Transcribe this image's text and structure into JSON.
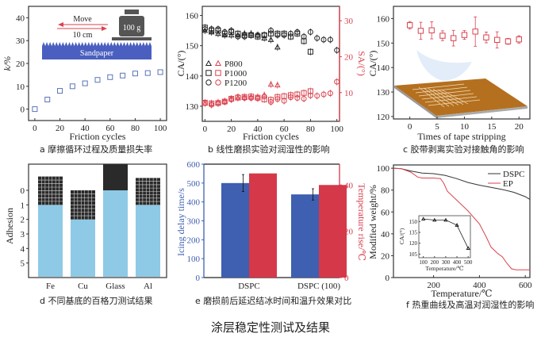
{
  "figure_title": "涂层稳定性测试及结果",
  "chart_data": [
    {
      "id": "a",
      "type": "scatter",
      "caption": "a 摩擦循环过程及质量损失率",
      "xlabel": "Friction cycles",
      "ylabel": "k/%",
      "xlim": [
        -5,
        105
      ],
      "ylim": [
        -5,
        45
      ],
      "xticks": [
        0,
        20,
        40,
        60,
        80,
        100
      ],
      "yticks": [
        0,
        10,
        20,
        30,
        40
      ],
      "marker": "square-open",
      "color": "#5b74b8",
      "x": [
        0,
        10,
        20,
        30,
        40,
        50,
        60,
        70,
        80,
        90,
        100
      ],
      "y": [
        0,
        4.2,
        8,
        10,
        11.3,
        12.8,
        14,
        14.7,
        15.6,
        15.8,
        16.2
      ],
      "inset": {
        "move_label": "Move",
        "distance_label": "10 cm",
        "weight_label": "100 g",
        "sandpaper_label": "Sandpaper"
      }
    },
    {
      "id": "b",
      "type": "scatter",
      "caption": "b 线性磨损实验对润湿性的影响",
      "xlabel": "Friction cycles",
      "ylabel_left": "CA/(°)",
      "ylabel_right": "SA/(°)",
      "xlim": [
        -2,
        102
      ],
      "ylim_left": [
        125,
        163
      ],
      "ylim_right": [
        2,
        34
      ],
      "xticks": [
        0,
        20,
        40,
        60,
        80,
        100
      ],
      "yticks_left": [
        130,
        140,
        150,
        160
      ],
      "yticks_right": [
        10,
        20,
        30
      ],
      "ca_color": "#222222",
      "sa_color": "#d9434f",
      "legend": [
        {
          "marker": "triangle",
          "label": "P800"
        },
        {
          "marker": "square",
          "label": "P1000"
        },
        {
          "marker": "circle",
          "label": "P1200"
        }
      ],
      "series": [
        {
          "name": "P800 CA",
          "axis": "left",
          "marker": "triangle",
          "x": [
            0,
            5,
            10,
            15,
            20,
            25,
            30,
            35,
            40,
            45,
            50,
            55
          ],
          "y": [
            155,
            154.5,
            154,
            153.5,
            153.5,
            153.5,
            154,
            154,
            153.5,
            152.5,
            152,
            149.5
          ]
        },
        {
          "name": "P1000 CA",
          "axis": "left",
          "marker": "square",
          "x": [
            0,
            5,
            10,
            15,
            20,
            25,
            30,
            35,
            40,
            45,
            50,
            55,
            60,
            65,
            70,
            75,
            80
          ],
          "y": [
            156,
            155,
            155,
            154,
            154.5,
            154,
            153.5,
            153.5,
            153,
            153.5,
            154,
            154,
            154,
            153,
            154,
            151.5,
            148
          ]
        },
        {
          "name": "P1200 CA",
          "axis": "left",
          "marker": "circle",
          "x": [
            0,
            5,
            10,
            15,
            20,
            25,
            30,
            35,
            40,
            45,
            50,
            55,
            60,
            65,
            70,
            75,
            80,
            85,
            90,
            95,
            100
          ],
          "y": [
            155.5,
            155.5,
            155.5,
            154.5,
            155,
            153,
            153,
            153.5,
            153.5,
            153.5,
            155,
            153.5,
            153.5,
            154,
            154.5,
            153,
            154.5,
            152.5,
            152,
            152,
            148.5
          ]
        },
        {
          "name": "P800 SA",
          "axis": "right",
          "marker": "triangle",
          "x": [
            0,
            5,
            10,
            15,
            20,
            25,
            30,
            35,
            40,
            45,
            50,
            55
          ],
          "y": [
            7,
            7,
            7.3,
            7.6,
            8.2,
            8.5,
            8.6,
            8.7,
            8.8,
            9.3,
            12.3,
            12.1
          ]
        },
        {
          "name": "P1000 SA",
          "axis": "right",
          "marker": "square",
          "x": [
            0,
            5,
            10,
            15,
            20,
            25,
            30,
            35,
            40,
            45,
            50,
            55,
            60,
            65,
            70,
            75,
            80
          ],
          "y": [
            7.2,
            7,
            7.1,
            7.5,
            8.3,
            8.6,
            8.8,
            8.9,
            8.6,
            8.1,
            8,
            8.8,
            9,
            9.3,
            9.5,
            9.9,
            10.4
          ]
        },
        {
          "name": "P1200 SA",
          "axis": "right",
          "marker": "circle",
          "x": [
            0,
            5,
            10,
            15,
            20,
            25,
            30,
            35,
            40,
            45,
            50,
            55,
            60,
            65,
            70,
            75,
            80,
            85,
            90,
            95,
            100
          ],
          "y": [
            7.1,
            6.6,
            7,
            7.4,
            8.1,
            8.8,
            8.5,
            8.5,
            8.4,
            8.9,
            7.4,
            8.2,
            7.7,
            8.7,
            8.5,
            8.3,
            9.2,
            9.1,
            9.5,
            9.8,
            13
          ]
        }
      ]
    },
    {
      "id": "c",
      "type": "scatter",
      "caption": "c 胶带剥离实验对接触角的影响",
      "xlabel": "Times of tape stripping",
      "ylabel": "CA/(°)",
      "xlim": [
        -3,
        22
      ],
      "ylim": [
        119,
        165
      ],
      "xticks": [
        0,
        5,
        10,
        15,
        20
      ],
      "yticks": [
        120,
        130,
        140,
        150,
        160
      ],
      "color": "#d9434f",
      "marker": "square-open",
      "x": [
        0,
        2,
        4,
        6,
        8,
        10,
        12,
        14,
        16,
        18,
        20
      ],
      "y": [
        157.3,
        155,
        155.2,
        153,
        152,
        153.3,
        154.7,
        152.3,
        151.3,
        150.7,
        151.5
      ],
      "err": [
        1.5,
        3.5,
        3.5,
        2,
        3.2,
        1.8,
        6,
        2.2,
        3.3,
        1.2,
        1.5
      ]
    },
    {
      "id": "d",
      "type": "bar",
      "caption": "d 不同基底的百格刀测试结果",
      "xlabel": "",
      "ylabel": "Adhesion",
      "categories": [
        "Fe",
        "Cu",
        "Glass",
        "Al"
      ],
      "values": [
        1,
        2,
        0,
        1
      ],
      "yticks": [
        0,
        1,
        2,
        3,
        4,
        5
      ],
      "y_inverted": true,
      "ylim": [
        6,
        -1.8
      ],
      "color": "#8ecae6"
    },
    {
      "id": "e",
      "type": "bar",
      "caption": "e 磨损前后延迟结冰时间和温升效果对比",
      "categories": [
        "DSPC",
        "DSPC (100)"
      ],
      "ylabel_left": "Icing delay time/s",
      "ylabel_right": "Temperature rise/℃",
      "ylim_left": [
        0,
        600
      ],
      "ylim_right": [
        0,
        49
      ],
      "yticks_left": [
        0,
        100,
        200,
        300,
        400,
        500,
        600
      ],
      "yticks_right": [
        0,
        20,
        40
      ],
      "series": [
        {
          "name": "Icing delay time",
          "axis": "left",
          "color": "#3f5fb0",
          "values": [
            500,
            440
          ],
          "err": [
            45,
            30
          ]
        },
        {
          "name": "Temperature rise",
          "axis": "right",
          "color": "#d53848",
          "values": [
            45,
            40
          ]
        }
      ]
    },
    {
      "id": "f",
      "type": "line",
      "caption": "f 热重曲线及高温对润湿性的影响",
      "xlabel": "Temperature/℃",
      "ylabel": "Modified weight/%",
      "xlim": [
        25,
        620
      ],
      "ylim": [
        0,
        103
      ],
      "xticks": [
        200,
        400,
        600
      ],
      "yticks": [
        0,
        20,
        40,
        60,
        80,
        100
      ],
      "legend": [
        "DSPC",
        "EP"
      ],
      "series": [
        {
          "name": "DSPC",
          "color": "#333333",
          "x": [
            25,
            60,
            100,
            150,
            200,
            250,
            300,
            350,
            400,
            450,
            500,
            550,
            600,
            620
          ],
          "y": [
            100,
            99.5,
            97.5,
            95.5,
            95,
            93.5,
            90.5,
            87,
            84.5,
            82.5,
            80.5,
            78,
            74,
            71.5
          ]
        },
        {
          "name": "EP",
          "color": "#d9434f",
          "x": [
            25,
            60,
            100,
            130,
            150,
            200,
            230,
            245,
            260,
            300,
            350,
            400,
            430,
            450,
            480,
            500,
            520,
            540,
            560,
            620
          ],
          "y": [
            100,
            99.5,
            96.5,
            92,
            91,
            91,
            90.5,
            86,
            79,
            71,
            61,
            49,
            37,
            28,
            22,
            19,
            13,
            8,
            7,
            7
          ]
        }
      ],
      "inset": {
        "type": "line",
        "xlabel": "Temperature/℃",
        "ylabel": "CA/(°)",
        "xlim": [
          60,
          520
        ],
        "ylim": [
          100,
          158
        ],
        "xticks": [
          100,
          200,
          300,
          400,
          500
        ],
        "yticks": [
          105,
          120,
          135,
          150
        ],
        "marker": "triangle-open",
        "x": [
          100,
          200,
          300,
          400,
          500
        ],
        "y": [
          153.5,
          152,
          152,
          145,
          113
        ]
      }
    }
  ]
}
